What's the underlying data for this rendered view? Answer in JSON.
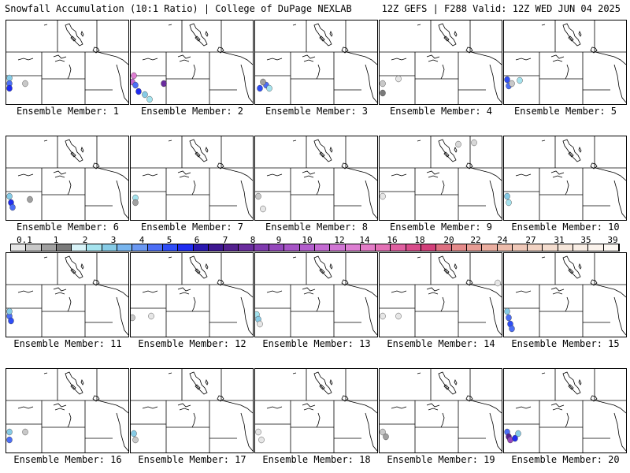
{
  "header": {
    "title_left": "Snowfall Accumulation (10:1 Ratio) | College of DuPage NEXLAB",
    "title_right": "12Z GEFS | F288 Valid: 12Z WED JUN 04 2025"
  },
  "panels": [
    {
      "label": "Ensemble Member: 1"
    },
    {
      "label": "Ensemble Member: 2"
    },
    {
      "label": "Ensemble Member: 3"
    },
    {
      "label": "Ensemble Member: 4"
    },
    {
      "label": "Ensemble Member: 5"
    },
    {
      "label": "Ensemble Member: 6"
    },
    {
      "label": "Ensemble Member: 7"
    },
    {
      "label": "Ensemble Member: 8"
    },
    {
      "label": "Ensemble Member: 9"
    },
    {
      "label": "Ensemble Member: 10"
    },
    {
      "label": "Ensemble Member: 11"
    },
    {
      "label": "Ensemble Member: 12"
    },
    {
      "label": "Ensemble Member: 13"
    },
    {
      "label": "Ensemble Member: 14"
    },
    {
      "label": "Ensemble Member: 15"
    },
    {
      "label": "Ensemble Member: 16"
    },
    {
      "label": "Ensemble Member: 17"
    },
    {
      "label": "Ensemble Member: 18"
    },
    {
      "label": "Ensemble Member: 19"
    },
    {
      "label": "Ensemble Member: 20"
    }
  ],
  "colorbar": {
    "ticks": [
      "0.1",
      "1",
      "2",
      "3",
      "4",
      "5",
      "6",
      "7",
      "8",
      "9",
      "10",
      "12",
      "14",
      "16",
      "18",
      "20",
      "22",
      "24",
      "27",
      "31",
      "35",
      "39"
    ],
    "colors": [
      "#e6e6e6",
      "#c8c8c8",
      "#a0a0a0",
      "#7a7a7a",
      "#d8f3f8",
      "#a5e3ee",
      "#86cbe6",
      "#78b5ee",
      "#6a98f2",
      "#4c6ef5",
      "#2e4df7",
      "#1f2cf0",
      "#2a18b0",
      "#3d1690",
      "#53208e",
      "#6a2c9e",
      "#7f3aae",
      "#9447bc",
      "#a654c6",
      "#b35ecd",
      "#c36ad2",
      "#d176d4",
      "#dd7ed2",
      "#e37cc7",
      "#e370b5",
      "#df5fa0",
      "#d84b8a",
      "#d23f7a",
      "#dd6f80",
      "#e48a8a",
      "#e89d95",
      "#eaaea0",
      "#edbcab",
      "#efc8b8",
      "#f2d3c3",
      "#f4ddcf",
      "#f6e6da",
      "#f9eee5",
      "#fbf3ec",
      "#fdf8f3"
    ]
  }
}
